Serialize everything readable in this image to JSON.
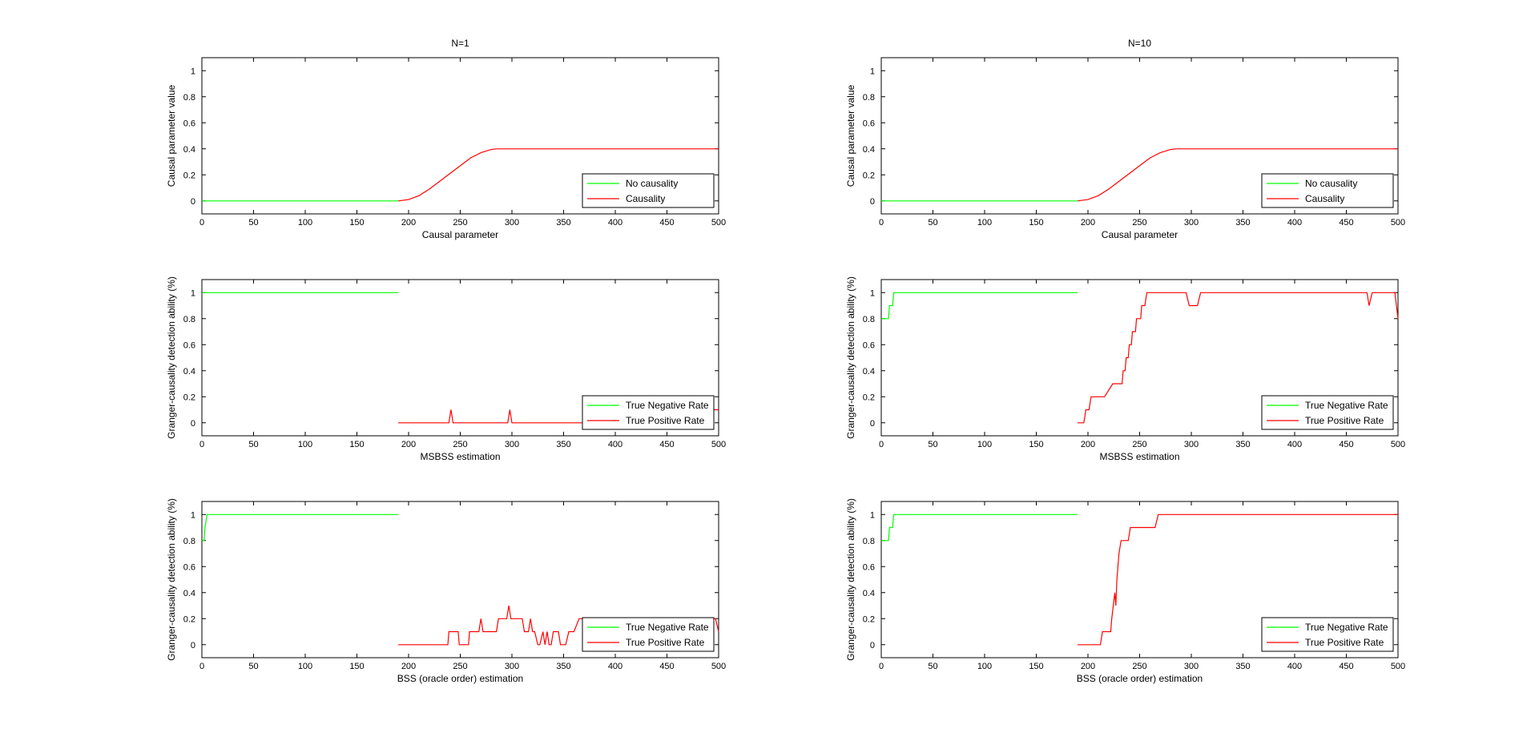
{
  "colors": {
    "no_causality": "#00ff00",
    "causality": "#ff0000",
    "axis": "#000000"
  },
  "chart_data": [
    {
      "id": "n1-param",
      "type": "line",
      "title": "N=1",
      "xlabel": "Causal parameter",
      "ylabel": "Causal parameter value",
      "xlim": [
        0,
        500
      ],
      "ylim": [
        -0.1,
        1.1
      ],
      "xticks": [
        0,
        50,
        100,
        150,
        200,
        250,
        300,
        350,
        400,
        450,
        500
      ],
      "xtick_labels": [
        "0",
        "50",
        "100",
        "150",
        "200",
        "250",
        "300",
        "350",
        "400",
        "450",
        "500"
      ],
      "yticks": [
        0,
        0.2,
        0.4,
        0.6,
        0.8,
        1
      ],
      "ytick_labels": [
        "0",
        "0.2",
        "0.4",
        "0.6",
        "0.8",
        "1"
      ],
      "legend_location": "bottom-right",
      "series": [
        {
          "name": "No causality",
          "color": "#00ff00",
          "x": [
            0,
            190
          ],
          "y": [
            0,
            0
          ]
        },
        {
          "name": "Causality",
          "color": "#ff0000",
          "x": [
            190,
            200,
            210,
            220,
            230,
            240,
            250,
            260,
            270,
            280,
            285,
            500
          ],
          "y": [
            0,
            0.01,
            0.04,
            0.09,
            0.15,
            0.21,
            0.27,
            0.33,
            0.37,
            0.395,
            0.4,
            0.4
          ]
        }
      ]
    },
    {
      "id": "n10-param",
      "type": "line",
      "title": "N=10",
      "xlabel": "Causal parameter",
      "ylabel": "Causal parameter value",
      "xlim": [
        0,
        500
      ],
      "ylim": [
        -0.1,
        1.1
      ],
      "xticks": [
        0,
        50,
        100,
        150,
        200,
        250,
        300,
        350,
        400,
        450,
        500
      ],
      "xtick_labels": [
        "0",
        "50",
        "100",
        "150",
        "200",
        "250",
        "300",
        "350",
        "400",
        "450",
        "500"
      ],
      "yticks": [
        0,
        0.2,
        0.4,
        0.6,
        0.8,
        1
      ],
      "ytick_labels": [
        "0",
        "0.2",
        "0.4",
        "0.6",
        "0.8",
        "1"
      ],
      "legend_location": "bottom-right",
      "series": [
        {
          "name": "No causality",
          "color": "#00ff00",
          "x": [
            0,
            190
          ],
          "y": [
            0,
            0
          ]
        },
        {
          "name": "Causality",
          "color": "#ff0000",
          "x": [
            190,
            200,
            210,
            220,
            230,
            240,
            250,
            260,
            270,
            280,
            285,
            500
          ],
          "y": [
            0,
            0.01,
            0.04,
            0.09,
            0.15,
            0.21,
            0.27,
            0.33,
            0.37,
            0.395,
            0.4,
            0.4
          ]
        }
      ]
    },
    {
      "id": "n1-msbss",
      "type": "line",
      "title": "",
      "xlabel": "MSBSS estimation",
      "ylabel": "Granger-causality detection ability (%)",
      "xlim": [
        0,
        500
      ],
      "ylim": [
        -0.1,
        1.1
      ],
      "xticks": [
        0,
        50,
        100,
        150,
        200,
        250,
        300,
        350,
        400,
        450,
        500
      ],
      "xtick_labels": [
        "0",
        "50",
        "100",
        "150",
        "200",
        "250",
        "300",
        "350",
        "400",
        "450",
        "500"
      ],
      "yticks": [
        0,
        0.2,
        0.4,
        0.6,
        0.8,
        1
      ],
      "ytick_labels": [
        "0",
        "0.2",
        "0.4",
        "0.6",
        "0.8",
        "1"
      ],
      "legend_location": "bottom-right",
      "series": [
        {
          "name": "True Negative Rate",
          "color": "#00ff00",
          "x": [
            0,
            190
          ],
          "y": [
            1,
            1
          ]
        },
        {
          "name": "True Positive Rate",
          "color": "#ff0000",
          "x": [
            190,
            239,
            241,
            243,
            296,
            298,
            300,
            480,
            482,
            484,
            486,
            488,
            490,
            500
          ],
          "y": [
            0,
            0,
            0.1,
            0,
            0,
            0.1,
            0,
            0,
            0.2,
            0.2,
            0.1,
            0.1,
            0.1,
            0.1
          ]
        }
      ]
    },
    {
      "id": "n10-msbss",
      "type": "line",
      "title": "",
      "xlabel": "MSBSS estimation",
      "ylabel": "Granger-causality detection ability (%)",
      "xlim": [
        0,
        500
      ],
      "ylim": [
        -0.1,
        1.1
      ],
      "xticks": [
        0,
        50,
        100,
        150,
        200,
        250,
        300,
        350,
        400,
        450,
        500
      ],
      "xtick_labels": [
        "0",
        "50",
        "100",
        "150",
        "200",
        "250",
        "300",
        "350",
        "400",
        "450",
        "500"
      ],
      "yticks": [
        0,
        0.2,
        0.4,
        0.6,
        0.8,
        1
      ],
      "ytick_labels": [
        "0",
        "0.2",
        "0.4",
        "0.6",
        "0.8",
        "1"
      ],
      "legend_location": "bottom-right",
      "series": [
        {
          "name": "True Negative Rate",
          "color": "#00ff00",
          "x": [
            0,
            1,
            2,
            7,
            8,
            11,
            12,
            13,
            190
          ],
          "y": [
            0.8,
            0.8,
            0.8,
            0.8,
            0.9,
            0.9,
            1,
            1,
            1
          ]
        },
        {
          "name": "True Positive Rate",
          "color": "#ff0000",
          "x": [
            190,
            196,
            198,
            201,
            203,
            206,
            215,
            216,
            224,
            226,
            233,
            234,
            236,
            237,
            239,
            240,
            242,
            243,
            246,
            247,
            251,
            252,
            255,
            257,
            260,
            295,
            298,
            306,
            309,
            470,
            472,
            475,
            497,
            500
          ],
          "y": [
            0,
            0,
            0.1,
            0.1,
            0.2,
            0.2,
            0.2,
            0.2,
            0.3,
            0.3,
            0.3,
            0.4,
            0.4,
            0.5,
            0.5,
            0.6,
            0.6,
            0.7,
            0.7,
            0.8,
            0.8,
            0.9,
            0.9,
            1,
            1,
            1,
            0.9,
            0.9,
            1,
            1,
            0.9,
            1,
            1,
            0.8
          ]
        }
      ]
    },
    {
      "id": "n1-bss",
      "type": "line",
      "title": "",
      "xlabel": "BSS (oracle order) estimation",
      "ylabel": "Granger-causality detection ability (%)",
      "xlim": [
        0,
        500
      ],
      "ylim": [
        -0.1,
        1.1
      ],
      "xticks": [
        0,
        50,
        100,
        150,
        200,
        250,
        300,
        350,
        400,
        450,
        500
      ],
      "xtick_labels": [
        "0",
        "50",
        "100",
        "150",
        "200",
        "250",
        "300",
        "350",
        "400",
        "450",
        "500"
      ],
      "yticks": [
        0,
        0.2,
        0.4,
        0.6,
        0.8,
        1
      ],
      "ytick_labels": [
        "0",
        "0.2",
        "0.4",
        "0.6",
        "0.8",
        "1"
      ],
      "legend_location": "bottom-right",
      "series": [
        {
          "name": "True Negative Rate",
          "color": "#00ff00",
          "x": [
            0,
            2,
            3,
            5,
            190
          ],
          "y": [
            0.8,
            0.8,
            0.9,
            1,
            1
          ]
        },
        {
          "name": "True Positive Rate",
          "color": "#ff0000",
          "x": [
            190,
            238,
            239,
            248,
            249,
            258,
            259,
            268,
            270,
            272,
            285,
            287,
            295,
            297,
            299,
            310,
            312,
            316,
            318,
            320,
            322,
            325,
            327,
            330,
            332,
            334,
            336,
            338,
            340,
            345,
            347,
            352,
            355,
            360,
            365,
            370,
            372,
            400,
            402,
            420,
            440,
            460,
            462,
            490,
            492,
            497,
            500
          ],
          "y": [
            0,
            0,
            0.1,
            0.1,
            0,
            0,
            0.1,
            0.1,
            0.2,
            0.1,
            0.1,
            0.2,
            0.2,
            0.3,
            0.2,
            0.2,
            0.1,
            0.1,
            0.2,
            0.1,
            0.1,
            0,
            0,
            0.1,
            0,
            0.1,
            0,
            0,
            0.1,
            0.1,
            0,
            0,
            0.1,
            0.1,
            0.2,
            0.2,
            0.2,
            0.2,
            0.1,
            0.1,
            0.1,
            0.1,
            0.2,
            0.2,
            0.2,
            0.2,
            0.1
          ]
        }
      ]
    },
    {
      "id": "n10-bss",
      "type": "line",
      "title": "",
      "xlabel": "BSS (oracle order) estimation",
      "ylabel": "Granger-causality detection ability (%)",
      "xlim": [
        0,
        500
      ],
      "ylim": [
        -0.1,
        1.1
      ],
      "xticks": [
        0,
        50,
        100,
        150,
        200,
        250,
        300,
        350,
        400,
        450,
        500
      ],
      "xtick_labels": [
        "0",
        "50",
        "100",
        "150",
        "200",
        "250",
        "300",
        "350",
        "400",
        "450",
        "500"
      ],
      "yticks": [
        0,
        0.2,
        0.4,
        0.6,
        0.8,
        1
      ],
      "ytick_labels": [
        "0",
        "0.2",
        "0.4",
        "0.6",
        "0.8",
        "1"
      ],
      "legend_location": "bottom-right",
      "series": [
        {
          "name": "True Negative Rate",
          "color": "#00ff00",
          "x": [
            0,
            7,
            8,
            11,
            12,
            190
          ],
          "y": [
            0.8,
            0.8,
            0.9,
            0.9,
            1,
            1
          ]
        },
        {
          "name": "True Positive Rate",
          "color": "#ff0000",
          "x": [
            190,
            212,
            214,
            222,
            223,
            226,
            227,
            228,
            229,
            230,
            232,
            233,
            236,
            239,
            241,
            244,
            247,
            265,
            268,
            500
          ],
          "y": [
            0,
            0,
            0.1,
            0.1,
            0.2,
            0.4,
            0.3,
            0.5,
            0.6,
            0.7,
            0.8,
            0.8,
            0.8,
            0.8,
            0.9,
            0.9,
            0.9,
            0.9,
            1,
            1
          ]
        }
      ]
    }
  ]
}
